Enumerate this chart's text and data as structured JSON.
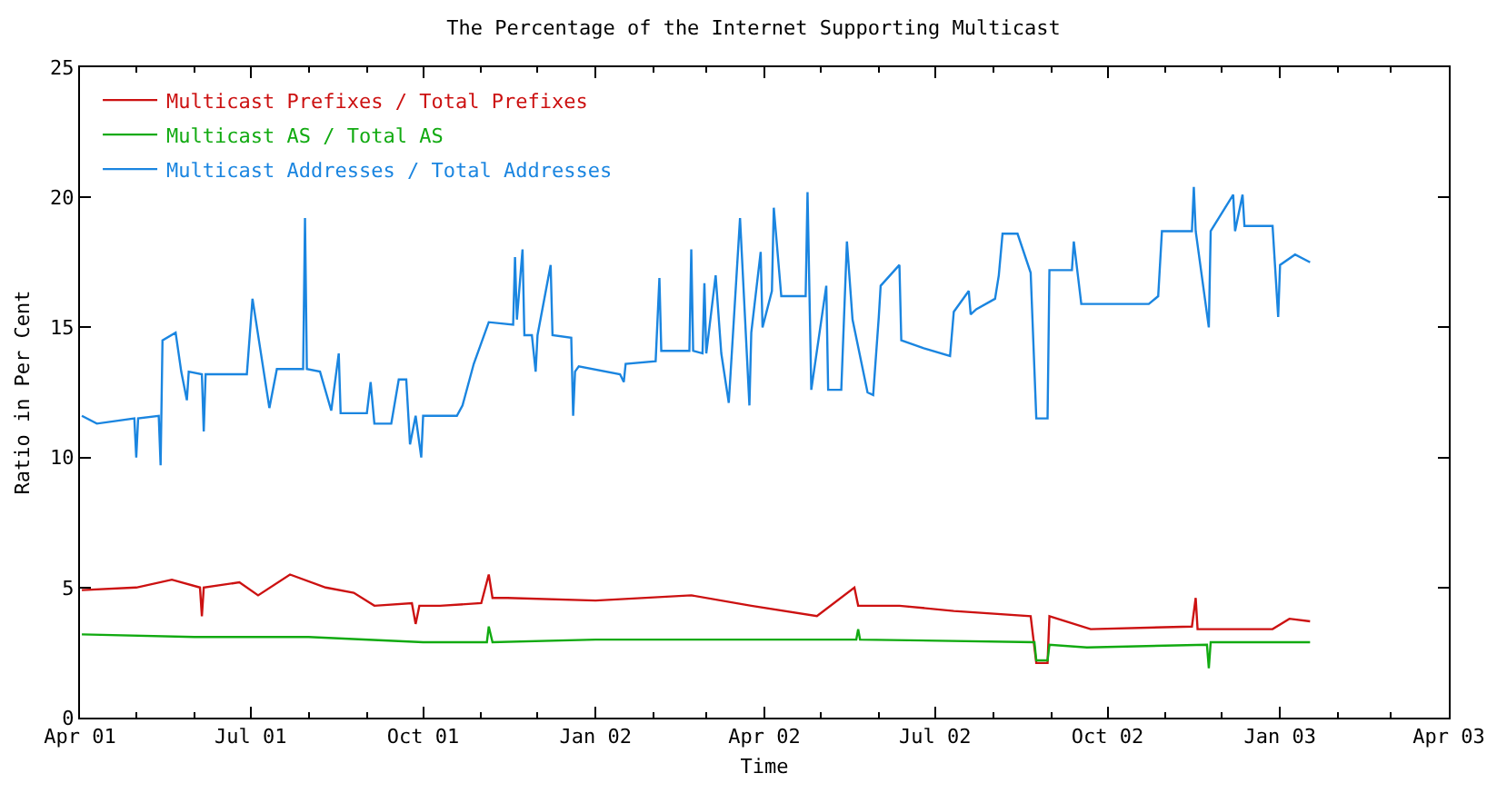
{
  "chart_data": {
    "type": "line",
    "title": "The Percentage of the Internet Supporting Multicast",
    "xlabel": "Time",
    "ylabel": "Ratio in Per Cent",
    "xlim": [
      "2001-04-01",
      "2003-04-01"
    ],
    "xticks": [
      {
        "value": "2001-04-01",
        "label": "Apr 01"
      },
      {
        "value": "2001-07-01",
        "label": "Jul 01"
      },
      {
        "value": "2001-10-01",
        "label": "Oct 01"
      },
      {
        "value": "2002-01-01",
        "label": "Jan 02"
      },
      {
        "value": "2002-04-01",
        "label": "Apr 02"
      },
      {
        "value": "2002-07-01",
        "label": "Jul 02"
      },
      {
        "value": "2002-10-01",
        "label": "Oct 02"
      },
      {
        "value": "2003-01-01",
        "label": "Jan 03"
      },
      {
        "value": "2003-04-01",
        "label": "Apr 03"
      }
    ],
    "ylim": [
      0,
      25
    ],
    "yticks": [
      0,
      5,
      10,
      15,
      20,
      25
    ],
    "legend": "top left",
    "marker": "none",
    "line_style": "solid",
    "series": [
      {
        "name": "Multicast Prefixes / Total Prefixes",
        "color": "#cc1111",
        "x": [
          "2001-04-02",
          "2001-05-01",
          "2001-05-20",
          "2001-06-04",
          "2001-06-05",
          "2001-06-06",
          "2001-06-25",
          "2001-07-05",
          "2001-07-22",
          "2001-08-10",
          "2001-08-25",
          "2001-09-05",
          "2001-09-25",
          "2001-09-27",
          "2001-09-29",
          "2001-10-10",
          "2001-11-01",
          "2001-11-05",
          "2001-11-07",
          "2001-11-15",
          "2002-01-01",
          "2002-02-21",
          "2002-03-25",
          "2002-04-29",
          "2002-05-19",
          "2002-05-21",
          "2002-06-12",
          "2002-07-11",
          "2002-08-21",
          "2002-08-24",
          "2002-08-30",
          "2002-08-31",
          "2002-09-22",
          "2002-11-15",
          "2002-11-17",
          "2002-11-18",
          "2002-12-28",
          "2003-01-06",
          "2003-01-17"
        ],
        "values": [
          4.9,
          5.0,
          5.3,
          5.0,
          3.9,
          5.0,
          5.2,
          4.7,
          5.5,
          5.0,
          4.8,
          4.3,
          4.4,
          3.6,
          4.3,
          4.3,
          4.4,
          5.5,
          4.6,
          4.6,
          4.5,
          4.7,
          4.3,
          3.9,
          5.0,
          4.3,
          4.3,
          4.1,
          3.9,
          2.1,
          2.1,
          3.9,
          3.4,
          3.5,
          4.6,
          3.4,
          3.4,
          3.8,
          3.7
        ]
      },
      {
        "name": "Multicast AS / Total AS",
        "color": "#11aa11",
        "x": [
          "2001-04-02",
          "2001-06-01",
          "2001-08-01",
          "2001-10-01",
          "2001-11-04",
          "2001-11-05",
          "2001-11-07",
          "2002-01-01",
          "2002-05-20",
          "2002-05-21",
          "2002-05-22",
          "2002-08-23",
          "2002-08-24",
          "2002-08-30",
          "2002-08-31",
          "2002-09-20",
          "2002-11-23",
          "2002-11-24",
          "2002-11-25",
          "2003-01-17"
        ],
        "values": [
          3.2,
          3.1,
          3.1,
          2.9,
          2.9,
          3.5,
          2.9,
          3.0,
          3.0,
          3.4,
          3.0,
          2.9,
          2.2,
          2.2,
          2.8,
          2.7,
          2.8,
          1.9,
          2.9,
          2.9
        ]
      },
      {
        "name": "Multicast Addresses / Total Addresses",
        "color": "#1a85e0",
        "x": [
          "2001-04-02",
          "2001-04-10",
          "2001-04-30",
          "2001-05-01",
          "2001-05-02",
          "2001-05-13",
          "2001-05-14",
          "2001-05-15",
          "2001-05-22",
          "2001-05-25",
          "2001-05-28",
          "2001-05-29",
          "2001-06-05",
          "2001-06-06",
          "2001-06-07",
          "2001-06-29",
          "2001-07-02",
          "2001-07-11",
          "2001-07-15",
          "2001-07-29",
          "2001-07-30",
          "2001-07-31",
          "2001-08-07",
          "2001-08-13",
          "2001-08-17",
          "2001-08-18",
          "2001-09-01",
          "2001-09-03",
          "2001-09-05",
          "2001-09-14",
          "2001-09-18",
          "2001-09-22",
          "2001-09-24",
          "2001-09-27",
          "2001-09-30",
          "2001-10-01",
          "2001-10-19",
          "2001-10-22",
          "2001-10-28",
          "2001-11-05",
          "2001-11-18",
          "2001-11-19",
          "2001-11-20",
          "2001-11-23",
          "2001-11-24",
          "2001-11-28",
          "2001-11-30",
          "2001-12-01",
          "2001-12-08",
          "2001-12-09",
          "2001-12-19",
          "2001-12-20",
          "2001-12-21",
          "2001-12-23",
          "2002-01-14",
          "2002-01-16",
          "2002-01-17",
          "2002-02-02",
          "2002-02-04",
          "2002-02-05",
          "2002-02-20",
          "2002-02-21",
          "2002-02-22",
          "2002-02-27",
          "2002-02-28",
          "2002-03-01",
          "2002-03-06",
          "2002-03-09",
          "2002-03-13",
          "2002-03-19",
          "2002-03-24",
          "2002-03-25",
          "2002-03-30",
          "2002-03-31",
          "2002-04-05",
          "2002-04-06",
          "2002-04-10",
          "2002-04-23",
          "2002-04-24",
          "2002-04-26",
          "2002-05-04",
          "2002-05-05",
          "2002-05-12",
          "2002-05-15",
          "2002-05-18",
          "2002-05-26",
          "2002-05-29",
          "2002-06-01",
          "2002-06-02",
          "2002-06-12",
          "2002-06-13",
          "2002-06-25",
          "2002-07-09",
          "2002-07-11",
          "2002-07-19",
          "2002-07-20",
          "2002-07-23",
          "2002-08-02",
          "2002-08-04",
          "2002-08-06",
          "2002-08-14",
          "2002-08-21",
          "2002-08-24",
          "2002-08-30",
          "2002-08-31",
          "2002-09-12",
          "2002-09-13",
          "2002-09-17",
          "2002-10-23",
          "2002-10-28",
          "2002-10-30",
          "2002-11-15",
          "2002-11-16",
          "2002-11-17",
          "2002-11-24",
          "2002-11-25",
          "2002-12-07",
          "2002-12-08",
          "2002-12-12",
          "2002-12-13",
          "2002-12-28",
          "2002-12-31",
          "2003-01-01",
          "2003-01-09",
          "2003-01-17"
        ],
        "values": [
          11.6,
          11.3,
          11.5,
          10.0,
          11.5,
          11.6,
          9.7,
          14.5,
          14.8,
          13.3,
          12.2,
          13.3,
          13.2,
          11.0,
          13.2,
          13.2,
          16.1,
          11.9,
          13.4,
          13.4,
          19.2,
          13.4,
          13.3,
          11.8,
          14.0,
          11.7,
          11.7,
          12.9,
          11.3,
          11.3,
          13.0,
          13.0,
          10.5,
          11.6,
          10.0,
          11.6,
          11.6,
          12.0,
          13.6,
          15.2,
          15.1,
          17.7,
          15.3,
          18.0,
          14.7,
          14.7,
          13.3,
          14.7,
          17.4,
          14.7,
          14.6,
          11.6,
          13.3,
          13.5,
          13.2,
          12.9,
          13.6,
          13.7,
          16.9,
          14.1,
          14.1,
          18.0,
          14.1,
          14.0,
          16.7,
          14.0,
          17.0,
          14.0,
          12.1,
          19.2,
          12.0,
          14.8,
          17.9,
          15.0,
          16.4,
          19.6,
          16.2,
          16.2,
          20.2,
          12.6,
          16.6,
          12.6,
          12.6,
          18.3,
          15.3,
          12.5,
          12.4,
          15.4,
          16.6,
          17.4,
          14.5,
          14.2,
          13.9,
          15.6,
          16.4,
          15.5,
          15.7,
          16.1,
          17.0,
          18.6,
          18.6,
          17.1,
          11.5,
          11.5,
          17.2,
          17.2,
          18.3,
          15.9,
          15.9,
          16.2,
          18.7,
          18.7,
          20.4,
          18.7,
          15.0,
          18.7,
          20.1,
          18.7,
          20.1,
          18.9,
          18.9,
          15.4,
          17.4,
          17.8,
          17.5
        ]
      }
    ]
  }
}
